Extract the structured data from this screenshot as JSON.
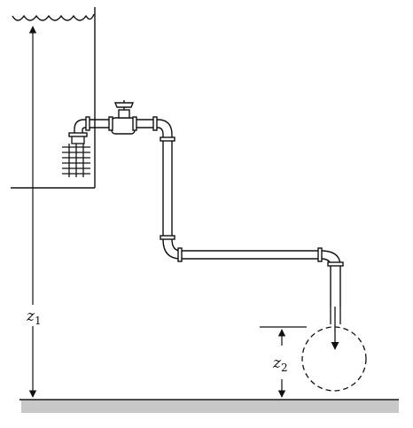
{
  "labels": {
    "z1": "z",
    "z1_sub": "1",
    "z2": "z",
    "z2_sub": "2"
  },
  "colors": {
    "line": "#111111",
    "ground": "#c8c8c8",
    "background": "#ffffff"
  }
}
